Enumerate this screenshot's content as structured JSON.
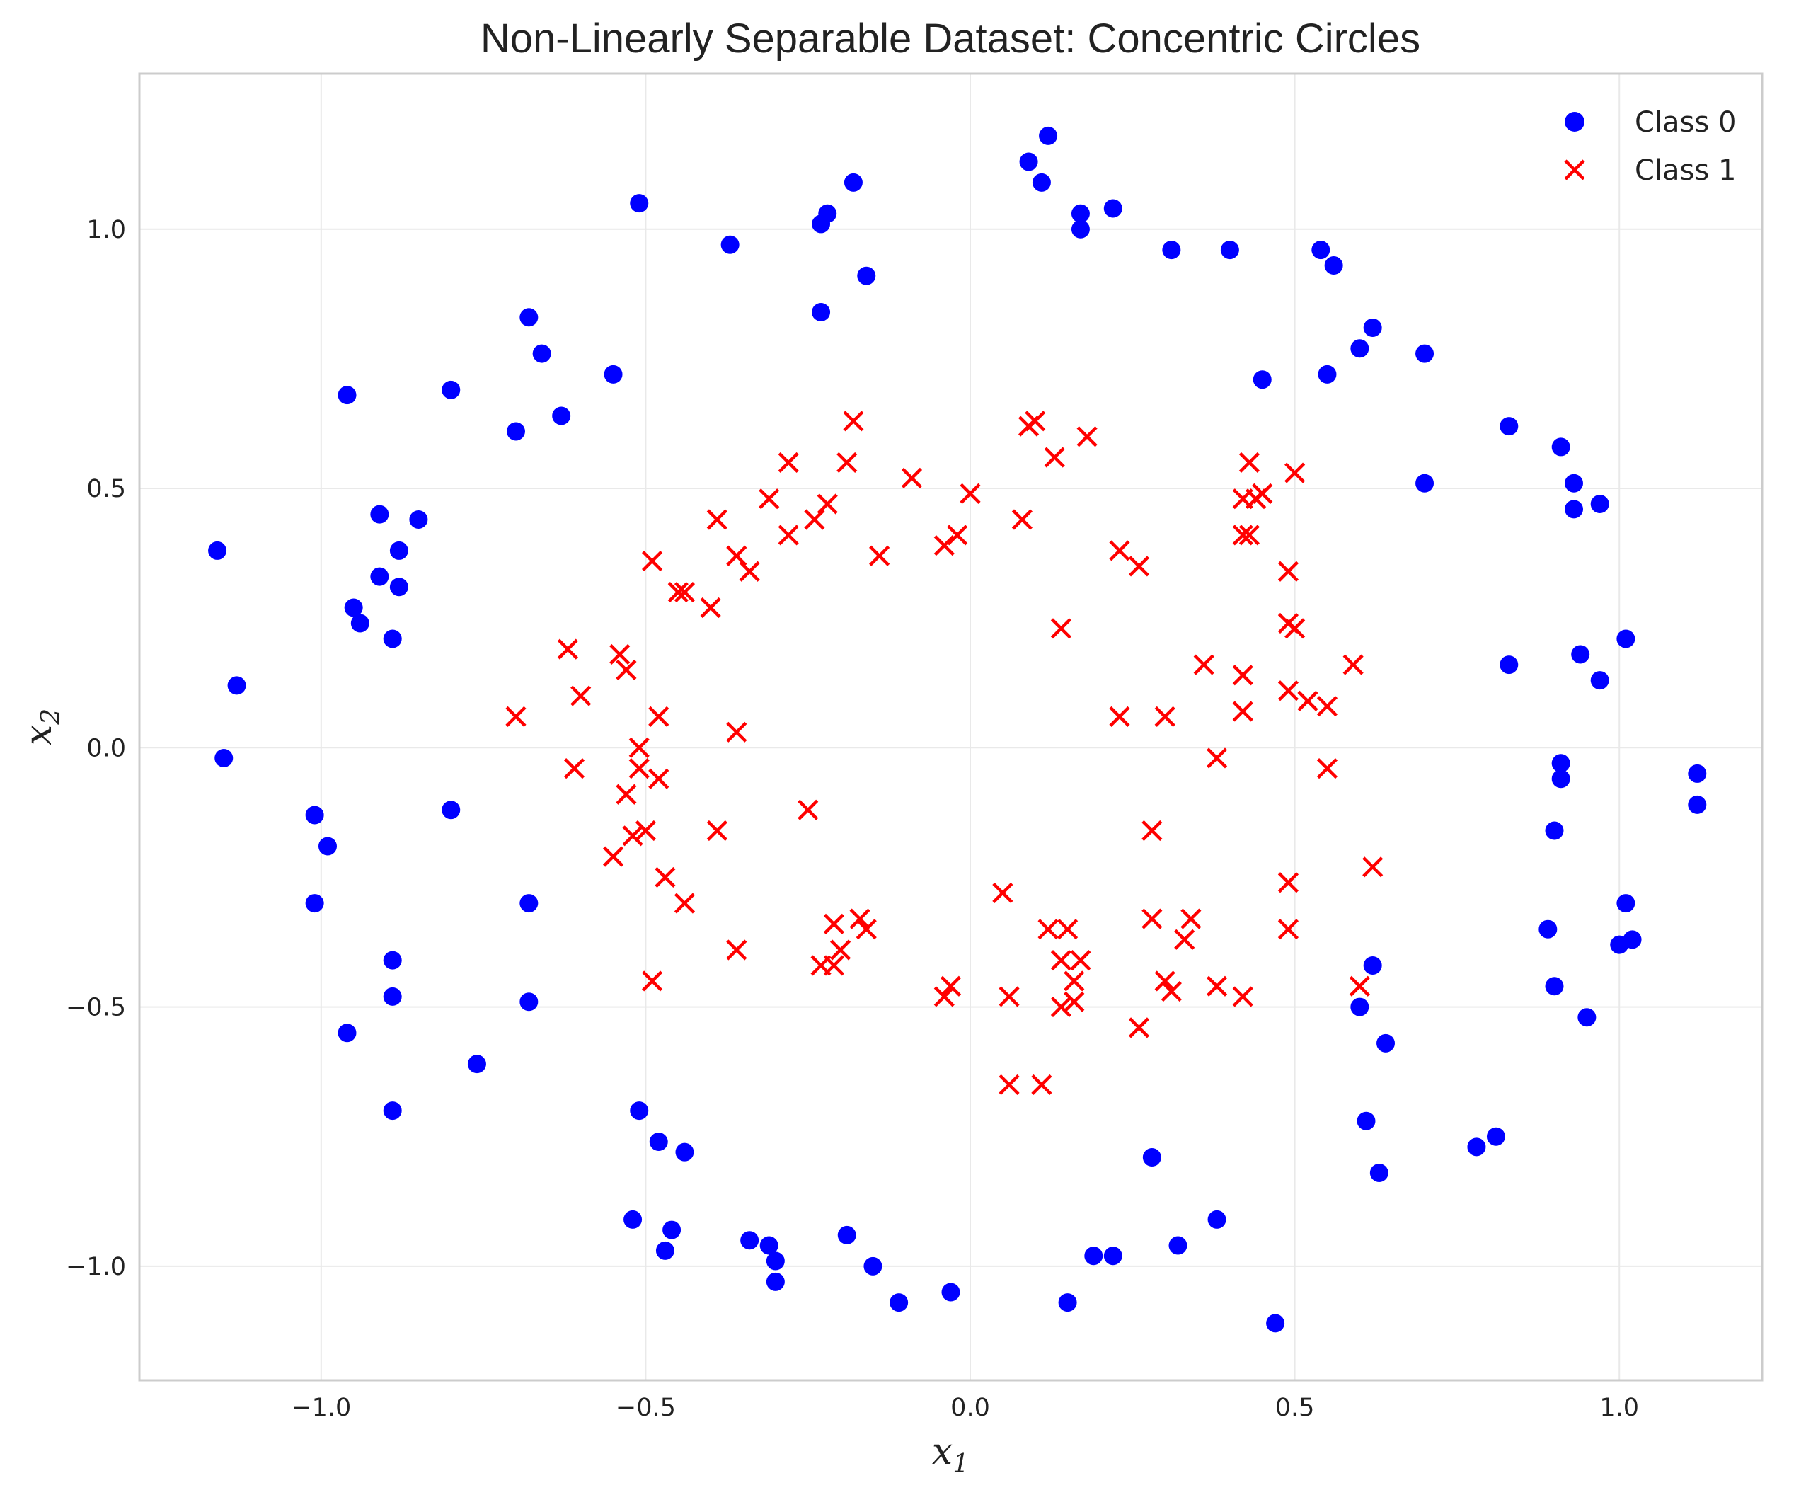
{
  "chart_data": {
    "type": "scatter",
    "title": "Non-Linearly Separable Dataset: Concentric Circles",
    "xlabel_base": "x",
    "xlabel_sub": "1",
    "ylabel_base": "x",
    "ylabel_sub": "2",
    "xlim": [
      -1.28,
      1.22
    ],
    "ylim": [
      -1.22,
      1.3
    ],
    "xticks": [
      -1.0,
      -0.5,
      0.0,
      0.5,
      1.0
    ],
    "xtick_labels": [
      "−1.0",
      "−0.5",
      "0.0",
      "0.5",
      "1.0"
    ],
    "yticks": [
      -1.0,
      -0.5,
      0.0,
      0.5,
      1.0
    ],
    "ytick_labels": [
      "−1.0",
      "−0.5",
      "0.0",
      "0.5",
      "1.0"
    ],
    "grid": true,
    "legend_position": "top-right",
    "series": [
      {
        "name": "Class 0",
        "marker": "circle",
        "color": "#0000ff",
        "points": [
          [
            0.12,
            1.18
          ],
          [
            0.09,
            1.13
          ],
          [
            0.11,
            1.09
          ],
          [
            -0.18,
            1.09
          ],
          [
            -0.22,
            1.03
          ],
          [
            -0.23,
            1.01
          ],
          [
            -0.51,
            1.05
          ],
          [
            0.17,
            1.03
          ],
          [
            0.17,
            1.0
          ],
          [
            0.22,
            1.04
          ],
          [
            -0.37,
            0.97
          ],
          [
            0.31,
            0.96
          ],
          [
            0.4,
            0.96
          ],
          [
            0.54,
            0.96
          ],
          [
            0.56,
            0.93
          ],
          [
            -0.16,
            0.91
          ],
          [
            -0.23,
            0.84
          ],
          [
            0.62,
            0.81
          ],
          [
            0.6,
            0.77
          ],
          [
            0.7,
            0.76
          ],
          [
            0.55,
            0.72
          ],
          [
            0.45,
            0.71
          ],
          [
            -0.68,
            0.83
          ],
          [
            -0.66,
            0.76
          ],
          [
            -0.55,
            0.72
          ],
          [
            -0.8,
            0.69
          ],
          [
            -0.96,
            0.68
          ],
          [
            -0.63,
            0.64
          ],
          [
            -0.7,
            0.61
          ],
          [
            0.83,
            0.62
          ],
          [
            0.91,
            0.58
          ],
          [
            0.93,
            0.51
          ],
          [
            0.7,
            0.51
          ],
          [
            0.97,
            0.47
          ],
          [
            0.93,
            0.46
          ],
          [
            -0.91,
            0.45
          ],
          [
            -0.85,
            0.44
          ],
          [
            -1.16,
            0.38
          ],
          [
            -0.88,
            0.38
          ],
          [
            -0.91,
            0.33
          ],
          [
            -0.88,
            0.31
          ],
          [
            -0.95,
            0.27
          ],
          [
            -0.94,
            0.24
          ],
          [
            -0.89,
            0.21
          ],
          [
            1.01,
            0.21
          ],
          [
            0.94,
            0.18
          ],
          [
            0.83,
            0.16
          ],
          [
            0.97,
            0.13
          ],
          [
            -1.13,
            0.12
          ],
          [
            -1.15,
            -0.02
          ],
          [
            0.91,
            -0.03
          ],
          [
            1.12,
            -0.05
          ],
          [
            0.91,
            -0.06
          ],
          [
            1.12,
            -0.11
          ],
          [
            -0.8,
            -0.12
          ],
          [
            -1.01,
            -0.13
          ],
          [
            0.9,
            -0.16
          ],
          [
            -0.99,
            -0.19
          ],
          [
            -1.01,
            -0.3
          ],
          [
            -0.68,
            -0.3
          ],
          [
            1.01,
            -0.3
          ],
          [
            0.89,
            -0.35
          ],
          [
            1.02,
            -0.37
          ],
          [
            1.0,
            -0.38
          ],
          [
            -0.89,
            -0.41
          ],
          [
            0.62,
            -0.42
          ],
          [
            0.9,
            -0.46
          ],
          [
            -0.89,
            -0.48
          ],
          [
            -0.68,
            -0.49
          ],
          [
            0.6,
            -0.5
          ],
          [
            0.95,
            -0.52
          ],
          [
            -0.96,
            -0.55
          ],
          [
            0.64,
            -0.57
          ],
          [
            -0.76,
            -0.61
          ],
          [
            -0.89,
            -0.7
          ],
          [
            -0.51,
            -0.7
          ],
          [
            0.61,
            -0.72
          ],
          [
            -0.48,
            -0.76
          ],
          [
            0.81,
            -0.75
          ],
          [
            0.78,
            -0.77
          ],
          [
            -0.44,
            -0.78
          ],
          [
            0.28,
            -0.79
          ],
          [
            0.63,
            -0.82
          ],
          [
            -0.52,
            -0.91
          ],
          [
            0.38,
            -0.91
          ],
          [
            -0.46,
            -0.93
          ],
          [
            -0.19,
            -0.94
          ],
          [
            -0.34,
            -0.95
          ],
          [
            -0.31,
            -0.96
          ],
          [
            0.32,
            -0.96
          ],
          [
            -0.47,
            -0.97
          ],
          [
            0.19,
            -0.98
          ],
          [
            0.22,
            -0.98
          ],
          [
            -0.3,
            -0.99
          ],
          [
            -0.15,
            -1.0
          ],
          [
            -0.3,
            -1.03
          ],
          [
            -0.03,
            -1.05
          ],
          [
            -0.11,
            -1.07
          ],
          [
            0.15,
            -1.07
          ],
          [
            0.47,
            -1.11
          ]
        ]
      },
      {
        "name": "Class 1",
        "marker": "x",
        "color": "#ff0000",
        "points": [
          [
            0.09,
            0.62
          ],
          [
            0.1,
            0.63
          ],
          [
            -0.18,
            0.63
          ],
          [
            0.18,
            0.6
          ],
          [
            0.13,
            0.56
          ],
          [
            -0.28,
            0.55
          ],
          [
            -0.19,
            0.55
          ],
          [
            0.43,
            0.55
          ],
          [
            0.5,
            0.53
          ],
          [
            -0.09,
            0.52
          ],
          [
            0.0,
            0.49
          ],
          [
            -0.31,
            0.48
          ],
          [
            0.42,
            0.48
          ],
          [
            0.44,
            0.48
          ],
          [
            0.45,
            0.49
          ],
          [
            -0.22,
            0.47
          ],
          [
            -0.39,
            0.44
          ],
          [
            -0.24,
            0.44
          ],
          [
            0.08,
            0.44
          ],
          [
            -0.28,
            0.41
          ],
          [
            -0.02,
            0.41
          ],
          [
            0.42,
            0.41
          ],
          [
            0.43,
            0.41
          ],
          [
            -0.04,
            0.39
          ],
          [
            0.23,
            0.38
          ],
          [
            -0.36,
            0.37
          ],
          [
            -0.14,
            0.37
          ],
          [
            -0.49,
            0.36
          ],
          [
            0.26,
            0.35
          ],
          [
            -0.34,
            0.34
          ],
          [
            0.49,
            0.34
          ],
          [
            -0.45,
            0.3
          ],
          [
            -0.44,
            0.3
          ],
          [
            -0.4,
            0.27
          ],
          [
            0.49,
            0.24
          ],
          [
            0.5,
            0.23
          ],
          [
            0.14,
            0.23
          ],
          [
            -0.62,
            0.19
          ],
          [
            -0.54,
            0.18
          ],
          [
            0.36,
            0.16
          ],
          [
            0.59,
            0.16
          ],
          [
            -0.53,
            0.15
          ],
          [
            0.42,
            0.14
          ],
          [
            0.49,
            0.11
          ],
          [
            0.52,
            0.09
          ],
          [
            0.55,
            0.08
          ],
          [
            -0.6,
            0.1
          ],
          [
            0.42,
            0.07
          ],
          [
            -0.7,
            0.06
          ],
          [
            -0.48,
            0.06
          ],
          [
            0.23,
            0.06
          ],
          [
            0.3,
            0.06
          ],
          [
            -0.36,
            0.03
          ],
          [
            -0.51,
            0.0
          ],
          [
            0.38,
            -0.02
          ],
          [
            -0.61,
            -0.04
          ],
          [
            -0.51,
            -0.04
          ],
          [
            0.55,
            -0.04
          ],
          [
            -0.48,
            -0.06
          ],
          [
            -0.53,
            -0.09
          ],
          [
            -0.25,
            -0.12
          ],
          [
            -0.39,
            -0.16
          ],
          [
            0.28,
            -0.16
          ],
          [
            -0.5,
            -0.16
          ],
          [
            -0.52,
            -0.17
          ],
          [
            -0.55,
            -0.21
          ],
          [
            0.62,
            -0.23
          ],
          [
            -0.47,
            -0.25
          ],
          [
            0.49,
            -0.26
          ],
          [
            0.05,
            -0.28
          ],
          [
            -0.44,
            -0.3
          ],
          [
            -0.17,
            -0.33
          ],
          [
            -0.21,
            -0.34
          ],
          [
            0.28,
            -0.33
          ],
          [
            0.34,
            -0.33
          ],
          [
            0.12,
            -0.35
          ],
          [
            0.15,
            -0.35
          ],
          [
            0.49,
            -0.35
          ],
          [
            -0.16,
            -0.35
          ],
          [
            0.33,
            -0.37
          ],
          [
            -0.36,
            -0.39
          ],
          [
            -0.2,
            -0.39
          ],
          [
            0.14,
            -0.41
          ],
          [
            0.17,
            -0.41
          ],
          [
            -0.23,
            -0.42
          ],
          [
            -0.21,
            -0.42
          ],
          [
            0.16,
            -0.45
          ],
          [
            0.3,
            -0.45
          ],
          [
            -0.49,
            -0.45
          ],
          [
            -0.03,
            -0.46
          ],
          [
            0.38,
            -0.46
          ],
          [
            0.31,
            -0.47
          ],
          [
            0.6,
            -0.46
          ],
          [
            -0.04,
            -0.48
          ],
          [
            0.06,
            -0.48
          ],
          [
            0.42,
            -0.48
          ],
          [
            0.16,
            -0.49
          ],
          [
            0.14,
            -0.5
          ],
          [
            0.26,
            -0.54
          ],
          [
            0.06,
            -0.65
          ],
          [
            0.11,
            -0.65
          ]
        ]
      }
    ]
  }
}
